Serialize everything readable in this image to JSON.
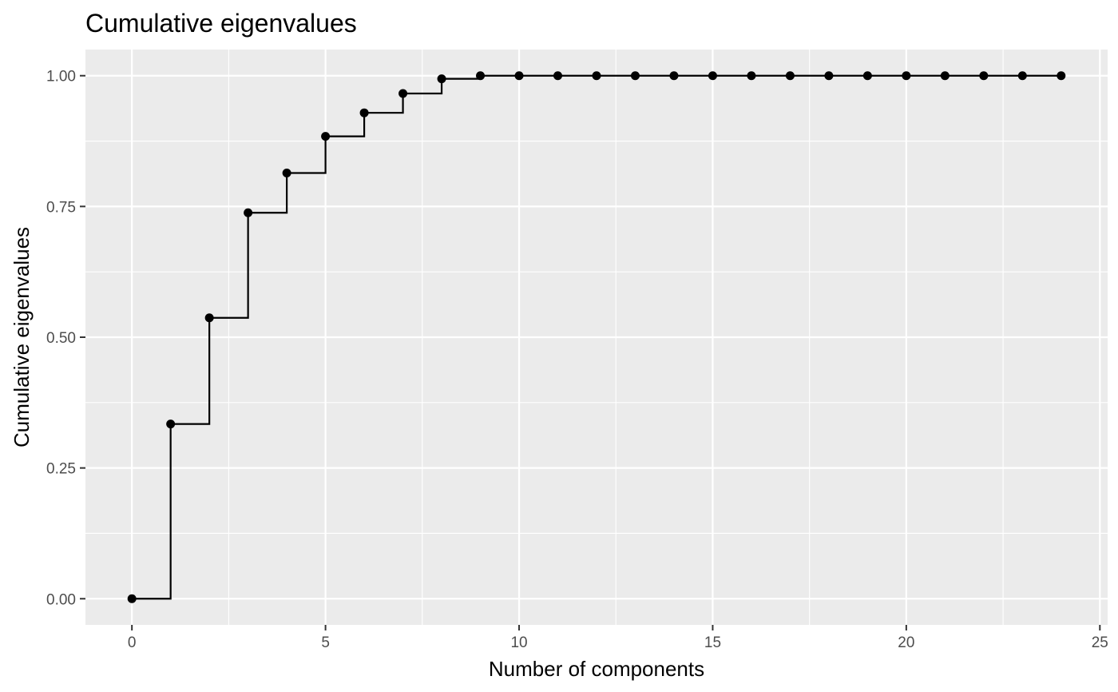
{
  "chart_data": {
    "type": "line",
    "subtype": "step-with-points",
    "title": "Cumulative eigenvalues",
    "xlabel": "Number of components",
    "ylabel": "Cumulative eigenvalues",
    "xlim": [
      -1.2,
      25.2
    ],
    "ylim": [
      -0.05,
      1.05
    ],
    "x_ticks": [
      0,
      5,
      10,
      15,
      20,
      25
    ],
    "x_tick_labels": [
      "0",
      "5",
      "10",
      "15",
      "20",
      "25"
    ],
    "y_ticks": [
      0,
      0.25,
      0.5,
      0.75,
      1.0
    ],
    "y_tick_labels": [
      "0.00",
      "0.25",
      "0.50",
      "0.75",
      "1.00"
    ],
    "grid": true,
    "panel_background": "#ebebeb",
    "grid_color": "#ffffff",
    "line_color": "#000000",
    "point_color": "#000000",
    "x": [
      0,
      1,
      2,
      3,
      4,
      5,
      6,
      7,
      8,
      9,
      10,
      11,
      12,
      13,
      14,
      15,
      16,
      17,
      18,
      19,
      20,
      21,
      22,
      23,
      24
    ],
    "y": [
      0.0,
      0.334,
      0.537,
      0.738,
      0.814,
      0.884,
      0.929,
      0.966,
      0.994,
      1.0,
      1.0,
      1.0,
      1.0,
      1.0,
      1.0,
      1.0,
      1.0,
      1.0,
      1.0,
      1.0,
      1.0,
      1.0,
      1.0,
      1.0,
      1.0
    ]
  }
}
